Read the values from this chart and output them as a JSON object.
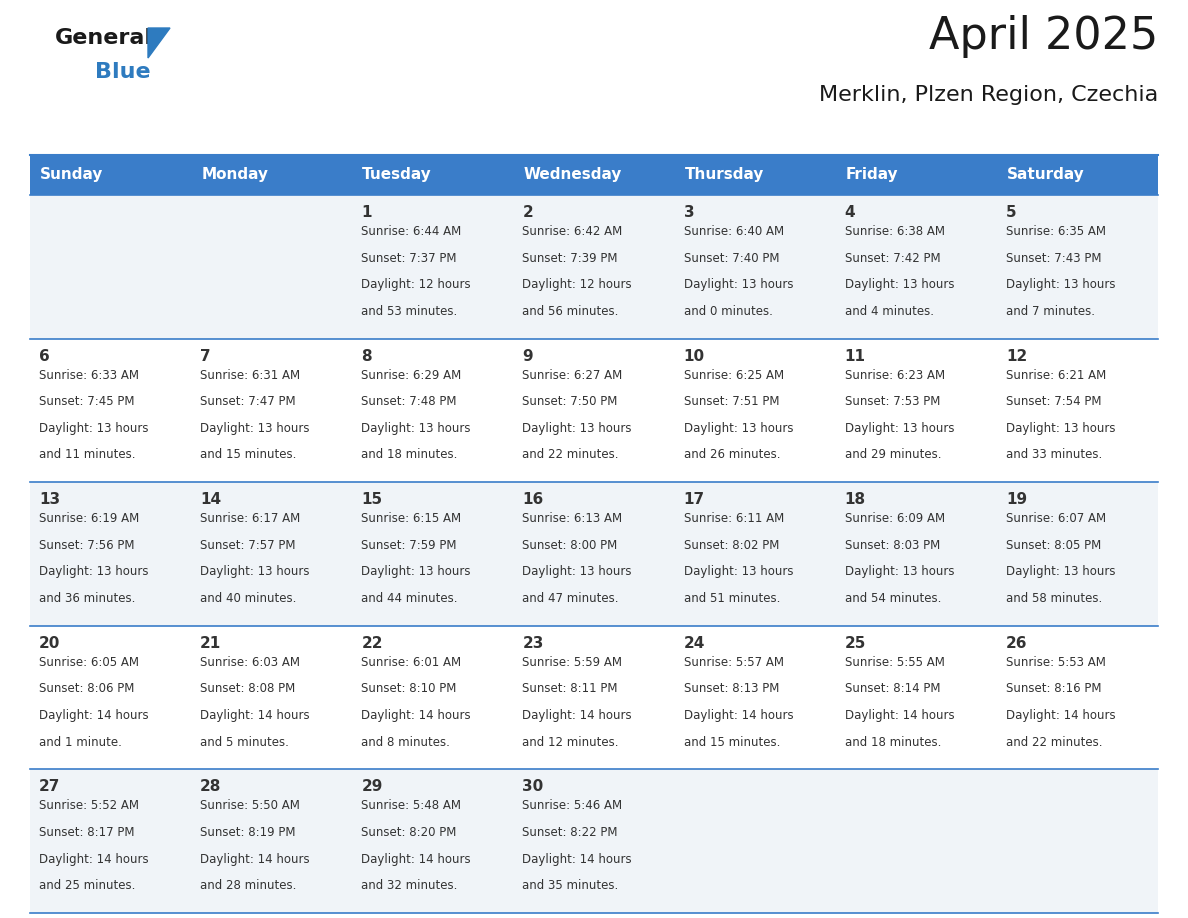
{
  "title": "April 2025",
  "subtitle": "Merklin, Plzen Region, Czechia",
  "days_of_week": [
    "Sunday",
    "Monday",
    "Tuesday",
    "Wednesday",
    "Thursday",
    "Friday",
    "Saturday"
  ],
  "header_bg": "#3a7dc9",
  "header_text": "#ffffff",
  "row_bg_odd": "#f0f4f8",
  "row_bg_even": "#ffffff",
  "border_color": "#3a7dc9",
  "text_color": "#333333",
  "title_color": "#1a1a1a",
  "calendar_data": [
    [
      {
        "day": "",
        "lines": []
      },
      {
        "day": "",
        "lines": []
      },
      {
        "day": "1",
        "lines": [
          "Sunrise: 6:44 AM",
          "Sunset: 7:37 PM",
          "Daylight: 12 hours",
          "and 53 minutes."
        ]
      },
      {
        "day": "2",
        "lines": [
          "Sunrise: 6:42 AM",
          "Sunset: 7:39 PM",
          "Daylight: 12 hours",
          "and 56 minutes."
        ]
      },
      {
        "day": "3",
        "lines": [
          "Sunrise: 6:40 AM",
          "Sunset: 7:40 PM",
          "Daylight: 13 hours",
          "and 0 minutes."
        ]
      },
      {
        "day": "4",
        "lines": [
          "Sunrise: 6:38 AM",
          "Sunset: 7:42 PM",
          "Daylight: 13 hours",
          "and 4 minutes."
        ]
      },
      {
        "day": "5",
        "lines": [
          "Sunrise: 6:35 AM",
          "Sunset: 7:43 PM",
          "Daylight: 13 hours",
          "and 7 minutes."
        ]
      }
    ],
    [
      {
        "day": "6",
        "lines": [
          "Sunrise: 6:33 AM",
          "Sunset: 7:45 PM",
          "Daylight: 13 hours",
          "and 11 minutes."
        ]
      },
      {
        "day": "7",
        "lines": [
          "Sunrise: 6:31 AM",
          "Sunset: 7:47 PM",
          "Daylight: 13 hours",
          "and 15 minutes."
        ]
      },
      {
        "day": "8",
        "lines": [
          "Sunrise: 6:29 AM",
          "Sunset: 7:48 PM",
          "Daylight: 13 hours",
          "and 18 minutes."
        ]
      },
      {
        "day": "9",
        "lines": [
          "Sunrise: 6:27 AM",
          "Sunset: 7:50 PM",
          "Daylight: 13 hours",
          "and 22 minutes."
        ]
      },
      {
        "day": "10",
        "lines": [
          "Sunrise: 6:25 AM",
          "Sunset: 7:51 PM",
          "Daylight: 13 hours",
          "and 26 minutes."
        ]
      },
      {
        "day": "11",
        "lines": [
          "Sunrise: 6:23 AM",
          "Sunset: 7:53 PM",
          "Daylight: 13 hours",
          "and 29 minutes."
        ]
      },
      {
        "day": "12",
        "lines": [
          "Sunrise: 6:21 AM",
          "Sunset: 7:54 PM",
          "Daylight: 13 hours",
          "and 33 minutes."
        ]
      }
    ],
    [
      {
        "day": "13",
        "lines": [
          "Sunrise: 6:19 AM",
          "Sunset: 7:56 PM",
          "Daylight: 13 hours",
          "and 36 minutes."
        ]
      },
      {
        "day": "14",
        "lines": [
          "Sunrise: 6:17 AM",
          "Sunset: 7:57 PM",
          "Daylight: 13 hours",
          "and 40 minutes."
        ]
      },
      {
        "day": "15",
        "lines": [
          "Sunrise: 6:15 AM",
          "Sunset: 7:59 PM",
          "Daylight: 13 hours",
          "and 44 minutes."
        ]
      },
      {
        "day": "16",
        "lines": [
          "Sunrise: 6:13 AM",
          "Sunset: 8:00 PM",
          "Daylight: 13 hours",
          "and 47 minutes."
        ]
      },
      {
        "day": "17",
        "lines": [
          "Sunrise: 6:11 AM",
          "Sunset: 8:02 PM",
          "Daylight: 13 hours",
          "and 51 minutes."
        ]
      },
      {
        "day": "18",
        "lines": [
          "Sunrise: 6:09 AM",
          "Sunset: 8:03 PM",
          "Daylight: 13 hours",
          "and 54 minutes."
        ]
      },
      {
        "day": "19",
        "lines": [
          "Sunrise: 6:07 AM",
          "Sunset: 8:05 PM",
          "Daylight: 13 hours",
          "and 58 minutes."
        ]
      }
    ],
    [
      {
        "day": "20",
        "lines": [
          "Sunrise: 6:05 AM",
          "Sunset: 8:06 PM",
          "Daylight: 14 hours",
          "and 1 minute."
        ]
      },
      {
        "day": "21",
        "lines": [
          "Sunrise: 6:03 AM",
          "Sunset: 8:08 PM",
          "Daylight: 14 hours",
          "and 5 minutes."
        ]
      },
      {
        "day": "22",
        "lines": [
          "Sunrise: 6:01 AM",
          "Sunset: 8:10 PM",
          "Daylight: 14 hours",
          "and 8 minutes."
        ]
      },
      {
        "day": "23",
        "lines": [
          "Sunrise: 5:59 AM",
          "Sunset: 8:11 PM",
          "Daylight: 14 hours",
          "and 12 minutes."
        ]
      },
      {
        "day": "24",
        "lines": [
          "Sunrise: 5:57 AM",
          "Sunset: 8:13 PM",
          "Daylight: 14 hours",
          "and 15 minutes."
        ]
      },
      {
        "day": "25",
        "lines": [
          "Sunrise: 5:55 AM",
          "Sunset: 8:14 PM",
          "Daylight: 14 hours",
          "and 18 minutes."
        ]
      },
      {
        "day": "26",
        "lines": [
          "Sunrise: 5:53 AM",
          "Sunset: 8:16 PM",
          "Daylight: 14 hours",
          "and 22 minutes."
        ]
      }
    ],
    [
      {
        "day": "27",
        "lines": [
          "Sunrise: 5:52 AM",
          "Sunset: 8:17 PM",
          "Daylight: 14 hours",
          "and 25 minutes."
        ]
      },
      {
        "day": "28",
        "lines": [
          "Sunrise: 5:50 AM",
          "Sunset: 8:19 PM",
          "Daylight: 14 hours",
          "and 28 minutes."
        ]
      },
      {
        "day": "29",
        "lines": [
          "Sunrise: 5:48 AM",
          "Sunset: 8:20 PM",
          "Daylight: 14 hours",
          "and 32 minutes."
        ]
      },
      {
        "day": "30",
        "lines": [
          "Sunrise: 5:46 AM",
          "Sunset: 8:22 PM",
          "Daylight: 14 hours",
          "and 35 minutes."
        ]
      },
      {
        "day": "",
        "lines": []
      },
      {
        "day": "",
        "lines": []
      },
      {
        "day": "",
        "lines": []
      }
    ]
  ]
}
